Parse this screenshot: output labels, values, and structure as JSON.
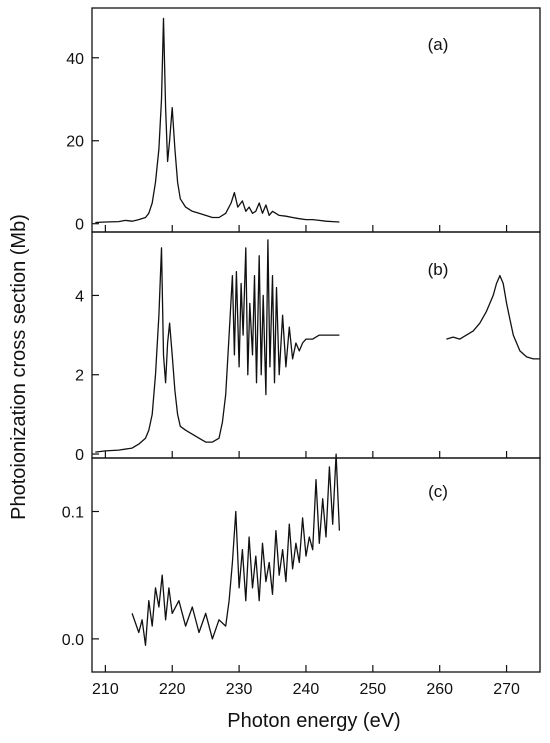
{
  "chart_data": {
    "type": "line",
    "xlabel": "Photon energy (eV)",
    "ylabel": "Photoionization cross section (Mb)",
    "xlim": [
      208,
      275
    ],
    "xticks": [
      210,
      220,
      230,
      240,
      250,
      260,
      270
    ],
    "line_color": "#111111",
    "grid": false,
    "panels": [
      {
        "label": "(a)",
        "ylim": [
          -2,
          52
        ],
        "yticks": [
          0,
          20,
          40
        ],
        "series": [
          {
            "x": [
              208.5,
              210,
              212,
              213,
              214,
              215,
              216,
              216.5,
              217,
              217.5,
              218,
              218.4,
              218.7,
              219,
              219.3,
              219.6,
              220,
              220.4,
              220.8,
              221.2,
              222,
              223,
              224,
              225,
              226,
              227,
              228,
              228.8,
              229.3,
              229.8,
              230.5,
              231,
              231.5,
              232,
              232.5,
              233,
              233.5,
              234,
              234.5,
              235,
              236,
              237,
              238,
              239,
              240,
              241,
              242,
              243,
              244,
              245
            ],
            "y": [
              0.3,
              0.4,
              0.5,
              0.8,
              0.6,
              1.0,
              1.5,
              2.5,
              5.0,
              10.0,
              18.0,
              30.0,
              49.5,
              28.0,
              15.0,
              20.0,
              28.0,
              18.0,
              10.0,
              6.0,
              4.0,
              3.0,
              2.5,
              2.0,
              1.5,
              1.5,
              2.5,
              5.0,
              7.5,
              4.0,
              5.5,
              3.0,
              4.0,
              2.5,
              3.0,
              5.0,
              2.5,
              4.5,
              2.0,
              3.0,
              2.0,
              1.8,
              1.5,
              1.2,
              1.0,
              1.0,
              0.8,
              0.6,
              0.5,
              0.4
            ]
          }
        ]
      },
      {
        "label": "(b)",
        "ylim": [
          -0.1,
          5.6
        ],
        "yticks": [
          0,
          2,
          4
        ],
        "series": [
          {
            "x": [
              208.5,
              210,
              212,
              214,
              215,
              216,
              216.5,
              217,
              217.5,
              218,
              218.4,
              218.7,
              219,
              219.3,
              219.6,
              220,
              220.4,
              220.8,
              221.2,
              222,
              223,
              224,
              225,
              226,
              227,
              227.5,
              228,
              228.5,
              229,
              229.3,
              229.6,
              230,
              230.3,
              230.6,
              231,
              231.3,
              231.6,
              232,
              232.3,
              232.6,
              233,
              233.3,
              233.6,
              234,
              234.3,
              234.6,
              235,
              235.3,
              235.6,
              236,
              236.5,
              237,
              237.5,
              238,
              238.5,
              239,
              239.5,
              240,
              241,
              242,
              243,
              244,
              245
            ],
            "y": [
              0.05,
              0.08,
              0.1,
              0.15,
              0.25,
              0.4,
              0.6,
              1.0,
              2.0,
              3.5,
              5.2,
              2.5,
              1.8,
              2.8,
              3.3,
              2.5,
              1.6,
              1.0,
              0.7,
              0.6,
              0.5,
              0.4,
              0.3,
              0.3,
              0.4,
              0.8,
              1.5,
              3.0,
              4.5,
              2.5,
              4.6,
              2.2,
              4.3,
              3.0,
              5.2,
              2.0,
              3.8,
              2.5,
              4.5,
              1.8,
              5.0,
              2.0,
              4.0,
              1.5,
              5.4,
              2.2,
              4.5,
              1.8,
              4.2,
              2.0,
              3.5,
              2.2,
              3.2,
              2.4,
              2.8,
              2.6,
              2.8,
              2.9,
              2.9,
              3.0,
              3.0,
              3.0,
              3.0
            ]
          },
          {
            "x": [
              261,
              262,
              263,
              264,
              265,
              266,
              267,
              268,
              268.5,
              269,
              269.5,
              270,
              270.5,
              271,
              272,
              273,
              274,
              275
            ],
            "y": [
              2.9,
              2.95,
              2.9,
              3.0,
              3.1,
              3.3,
              3.6,
              4.0,
              4.3,
              4.5,
              4.3,
              3.8,
              3.4,
              3.0,
              2.6,
              2.45,
              2.4,
              2.4
            ]
          }
        ]
      },
      {
        "label": "(c)",
        "ylim": [
          -0.026,
          0.142
        ],
        "yticks": [
          0.0,
          0.1
        ],
        "ytick_labels": [
          "0.0",
          "0.1"
        ],
        "series": [
          {
            "x": [
              214,
              215,
              215.5,
              216,
              216.5,
              217,
              217.5,
              218,
              218.5,
              219,
              219.5,
              220,
              221,
              222,
              223,
              224,
              225,
              226,
              227,
              228,
              228.5,
              229,
              229.5,
              230,
              230.5,
              231,
              231.5,
              232,
              232.5,
              233,
              233.5,
              234,
              234.5,
              235,
              235.5,
              236,
              236.5,
              237,
              237.5,
              238,
              238.5,
              239,
              239.5,
              240,
              240.5,
              241,
              241.5,
              242,
              242.5,
              243,
              243.5,
              244,
              244.5,
              245
            ],
            "y": [
              0.02,
              0.005,
              0.015,
              -0.005,
              0.03,
              0.01,
              0.04,
              0.025,
              0.05,
              0.015,
              0.04,
              0.02,
              0.03,
              0.01,
              0.025,
              0.005,
              0.02,
              0.0,
              0.015,
              0.01,
              0.03,
              0.06,
              0.1,
              0.04,
              0.07,
              0.03,
              0.08,
              0.04,
              0.065,
              0.03,
              0.075,
              0.045,
              0.06,
              0.035,
              0.085,
              0.05,
              0.07,
              0.045,
              0.09,
              0.055,
              0.075,
              0.06,
              0.095,
              0.065,
              0.08,
              0.07,
              0.125,
              0.075,
              0.11,
              0.08,
              0.135,
              0.09,
              0.145,
              0.085
            ]
          }
        ]
      }
    ]
  }
}
